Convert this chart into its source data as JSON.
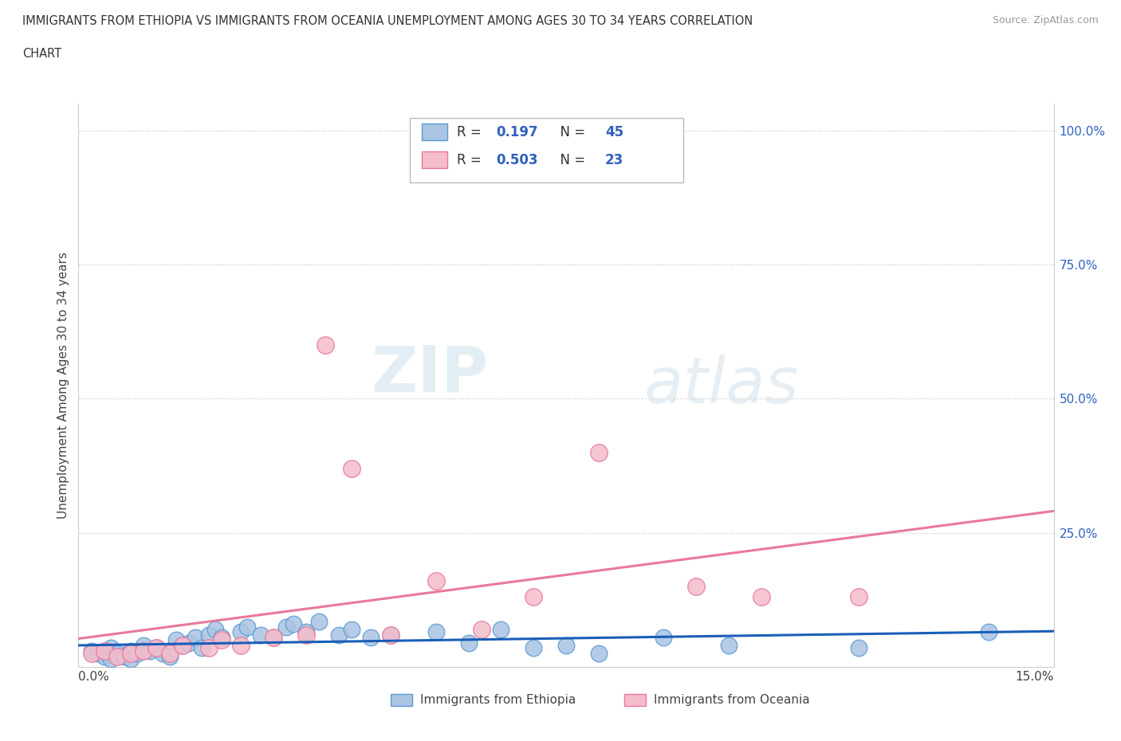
{
  "title_line1": "IMMIGRANTS FROM ETHIOPIA VS IMMIGRANTS FROM OCEANIA UNEMPLOYMENT AMONG AGES 30 TO 34 YEARS CORRELATION",
  "title_line2": "CHART",
  "source_text": "Source: ZipAtlas.com",
  "ylabel": "Unemployment Among Ages 30 to 34 years",
  "xlim": [
    0.0,
    0.15
  ],
  "ylim": [
    0.0,
    1.05
  ],
  "yticks": [
    0.0,
    0.25,
    0.5,
    0.75,
    1.0
  ],
  "ytick_labels": [
    "",
    "25.0%",
    "50.0%",
    "75.0%",
    "100.0%"
  ],
  "right_ytick_labels": [
    "100.0%",
    "75.0%",
    "50.0%",
    "25.0%",
    ""
  ],
  "watermark_zip": "ZIP",
  "watermark_atlas": "atlas",
  "ethiopia_color": "#aac4e2",
  "ethiopia_edge": "#5b9bd5",
  "oceania_color": "#f5bccb",
  "oceania_edge": "#e8799a",
  "ethiopia_line_color": "#1a5eb8",
  "oceania_line_color": "#e8799a",
  "ethiopia_R": 0.197,
  "ethiopia_N": 45,
  "oceania_R": 0.503,
  "oceania_N": 23,
  "ethiopia_x": [
    0.002,
    0.003,
    0.004,
    0.005,
    0.005,
    0.006,
    0.007,
    0.008,
    0.008,
    0.009,
    0.01,
    0.011,
    0.012,
    0.013,
    0.014,
    0.015,
    0.016,
    0.017,
    0.018,
    0.019,
    0.02,
    0.021,
    0.022,
    0.025,
    0.026,
    0.028,
    0.03,
    0.032,
    0.033,
    0.035,
    0.037,
    0.04,
    0.042,
    0.045,
    0.048,
    0.055,
    0.06,
    0.065,
    0.07,
    0.075,
    0.08,
    0.09,
    0.1,
    0.12,
    0.14
  ],
  "ethiopia_y": [
    0.03,
    0.025,
    0.02,
    0.015,
    0.035,
    0.025,
    0.02,
    0.03,
    0.015,
    0.025,
    0.04,
    0.03,
    0.035,
    0.025,
    0.02,
    0.05,
    0.04,
    0.045,
    0.055,
    0.035,
    0.06,
    0.07,
    0.055,
    0.065,
    0.075,
    0.06,
    0.055,
    0.075,
    0.08,
    0.065,
    0.085,
    0.06,
    0.07,
    0.055,
    0.06,
    0.065,
    0.045,
    0.07,
    0.035,
    0.04,
    0.025,
    0.055,
    0.04,
    0.035,
    0.065
  ],
  "oceania_x": [
    0.002,
    0.004,
    0.006,
    0.008,
    0.01,
    0.012,
    0.014,
    0.016,
    0.02,
    0.022,
    0.025,
    0.03,
    0.035,
    0.038,
    0.042,
    0.048,
    0.055,
    0.062,
    0.07,
    0.08,
    0.095,
    0.105,
    0.12
  ],
  "oceania_y": [
    0.025,
    0.03,
    0.02,
    0.025,
    0.03,
    0.035,
    0.025,
    0.04,
    0.035,
    0.05,
    0.04,
    0.055,
    0.06,
    0.6,
    0.37,
    0.06,
    0.16,
    0.07,
    0.13,
    0.4,
    0.15,
    0.13,
    0.13
  ]
}
